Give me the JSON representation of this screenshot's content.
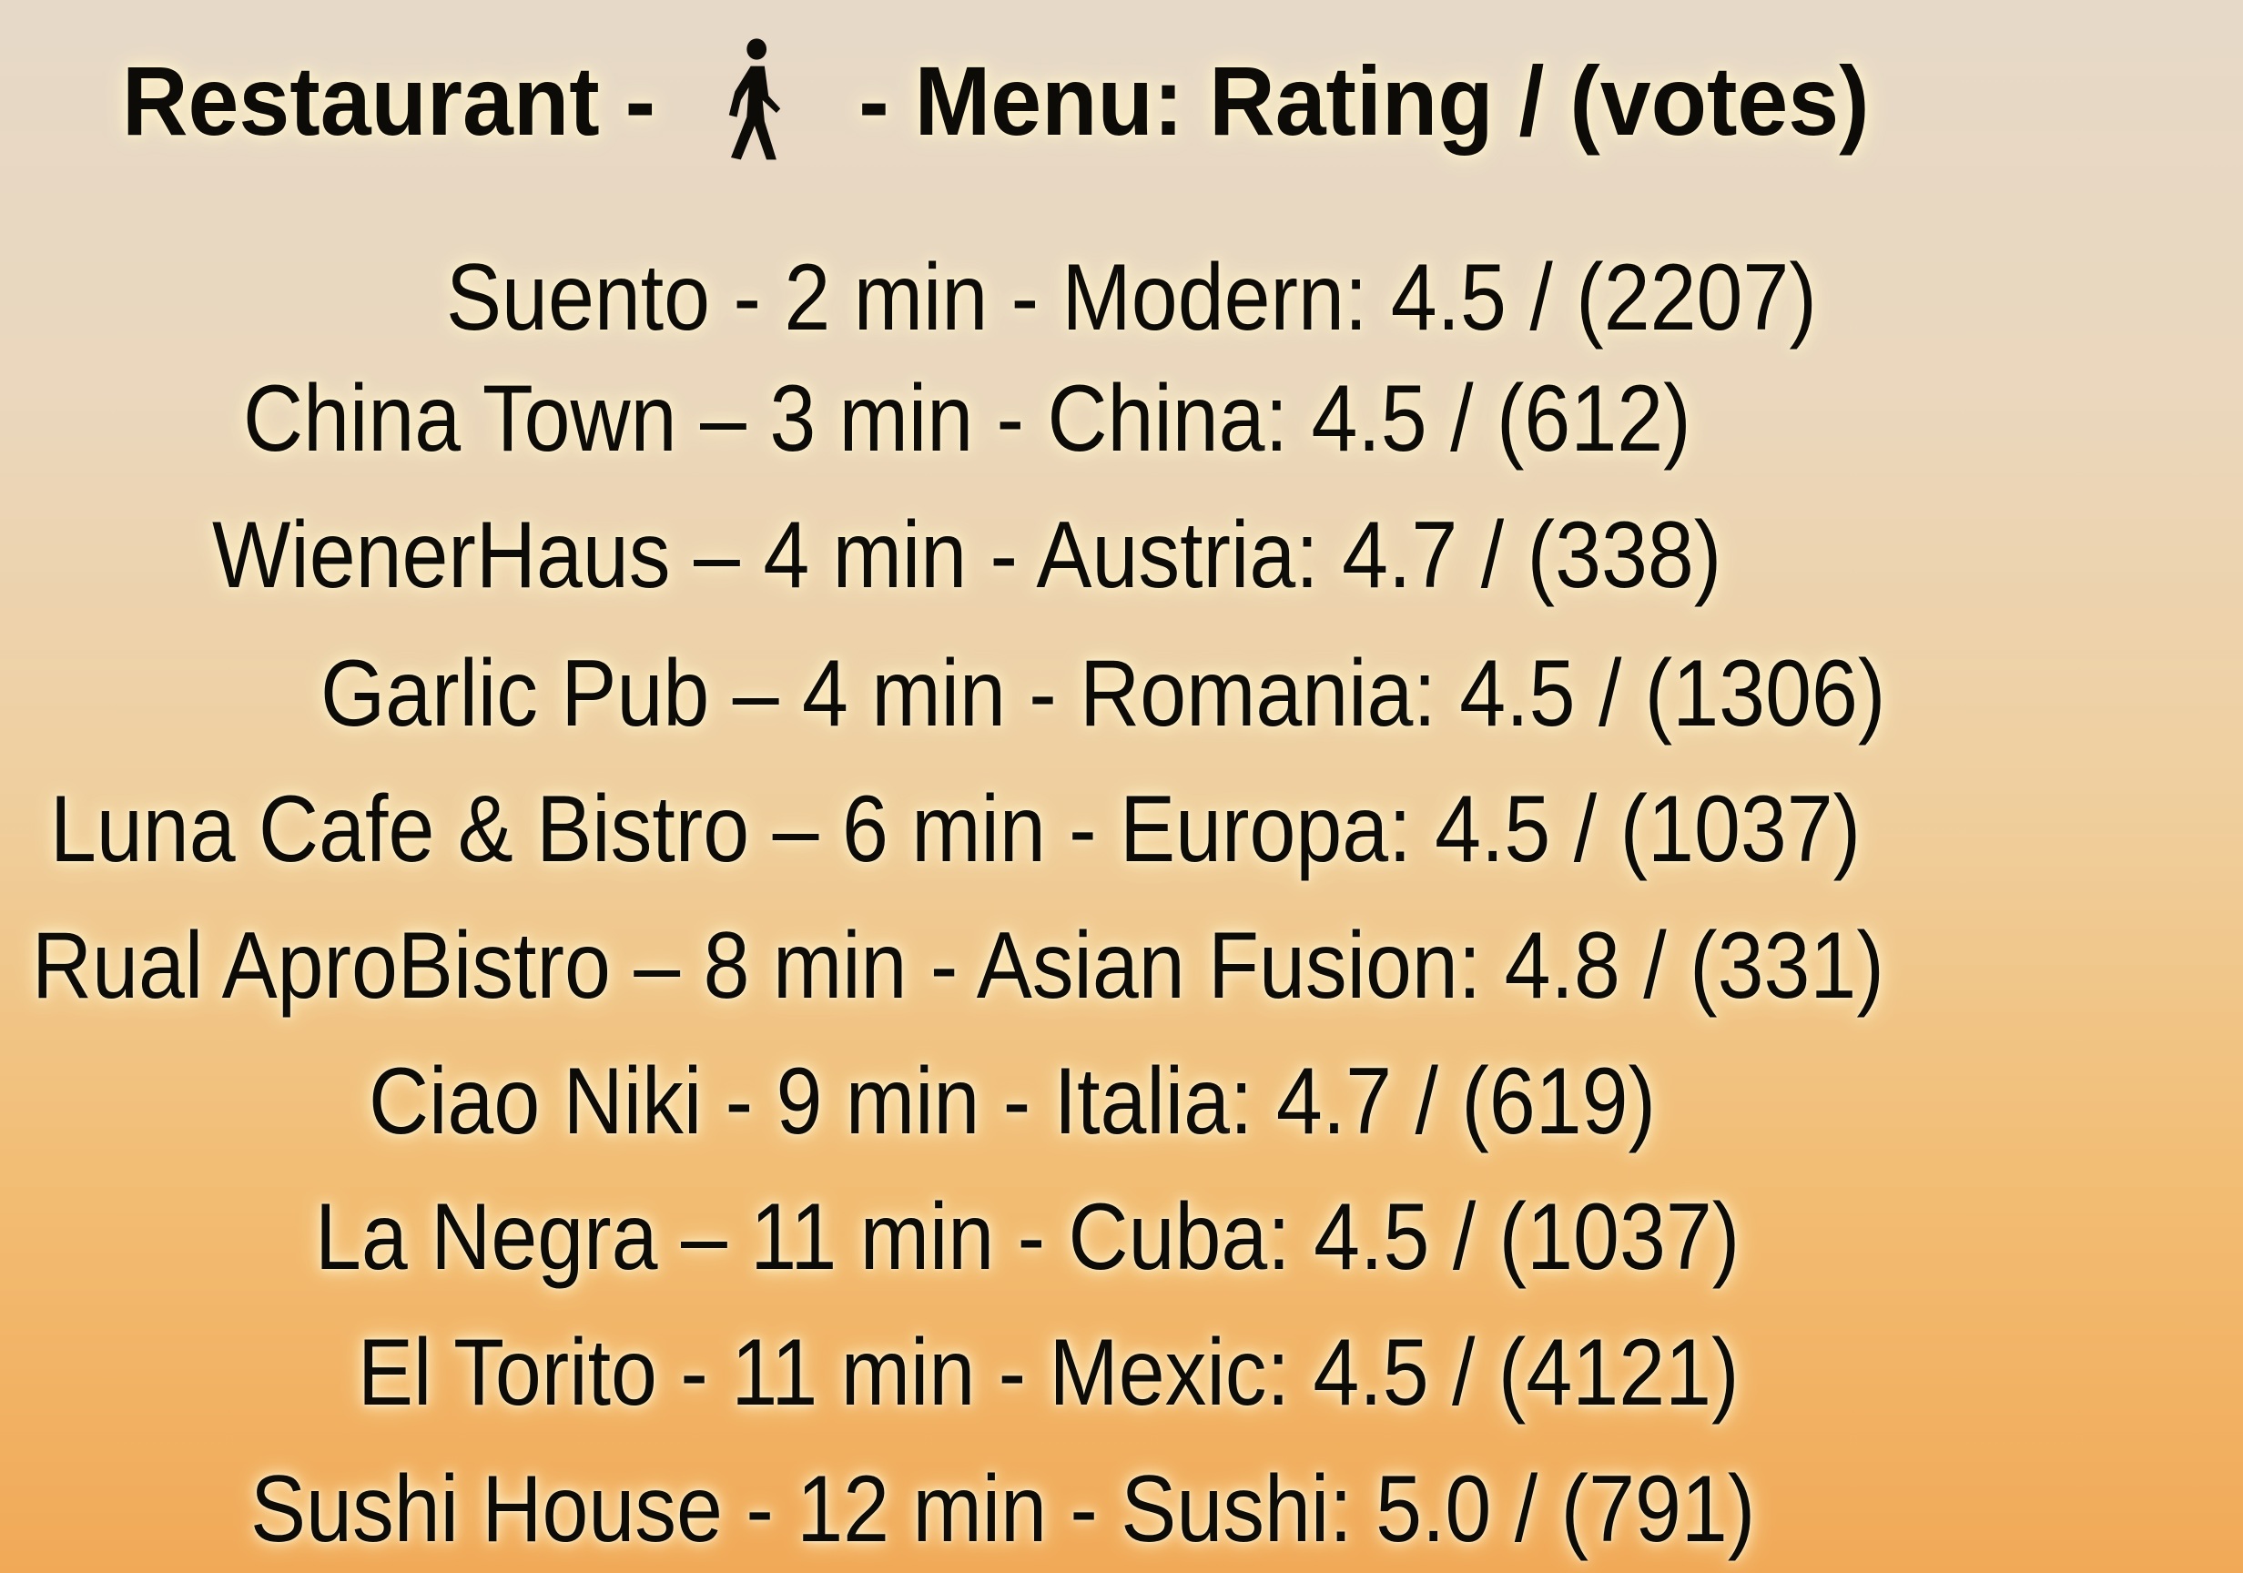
{
  "header": {
    "prefix": "Restaurant -",
    "icon": "walking-person-icon",
    "suffix": "- Menu: Rating / (votes)"
  },
  "colors": {
    "text": "#0d0b08",
    "background_top": "#e6d9c8",
    "background_bottom": "#f1a957",
    "glow": "#fff4cf"
  },
  "restaurants": [
    {
      "name": "Suento",
      "sep": "-",
      "time": "2 min",
      "menu": "Modern",
      "rating": "4.5",
      "votes": "(2207)"
    },
    {
      "name": "China Town",
      "sep": "–",
      "time": "3 min",
      "menu": "China",
      "rating": "4.5",
      "votes": "(612)"
    },
    {
      "name": "WienerHaus",
      "sep": "–",
      "time": "4 min",
      "menu": "Austria",
      "rating": "4.7",
      "votes": "(338)"
    },
    {
      "name": "Garlic Pub",
      "sep": "–",
      "time": "4 min",
      "menu": "Romania",
      "rating": "4.5",
      "votes": "(1306)"
    },
    {
      "name": "Luna Cafe & Bistro",
      "sep": "–",
      "time": "6 min",
      "menu": "Europa",
      "rating": "4.5",
      "votes": "(1037)"
    },
    {
      "name": "Rual AproBistro",
      "sep": "–",
      "time": "8 min",
      "menu": "Asian Fusion",
      "rating": "4.8",
      "votes": "(331)"
    },
    {
      "name": "Ciao Niki",
      "sep": "-",
      "time": "9 min",
      "menu": "Italia",
      "rating": "4.7",
      "votes": "(619)"
    },
    {
      "name": "La Negra",
      "sep": "–",
      "time": "11 min",
      "menu": "Cuba",
      "rating": "4.5",
      "votes": "(1037)"
    },
    {
      "name": "El Torito",
      "sep": "-",
      "time": "11 min",
      "menu": "Mexic",
      "rating": "4.5",
      "votes": "(4121)"
    },
    {
      "name": "Sushi House",
      "sep": "-",
      "time": "12 min",
      "menu": "Sushi",
      "rating": "5.0",
      "votes": "(791)"
    }
  ]
}
